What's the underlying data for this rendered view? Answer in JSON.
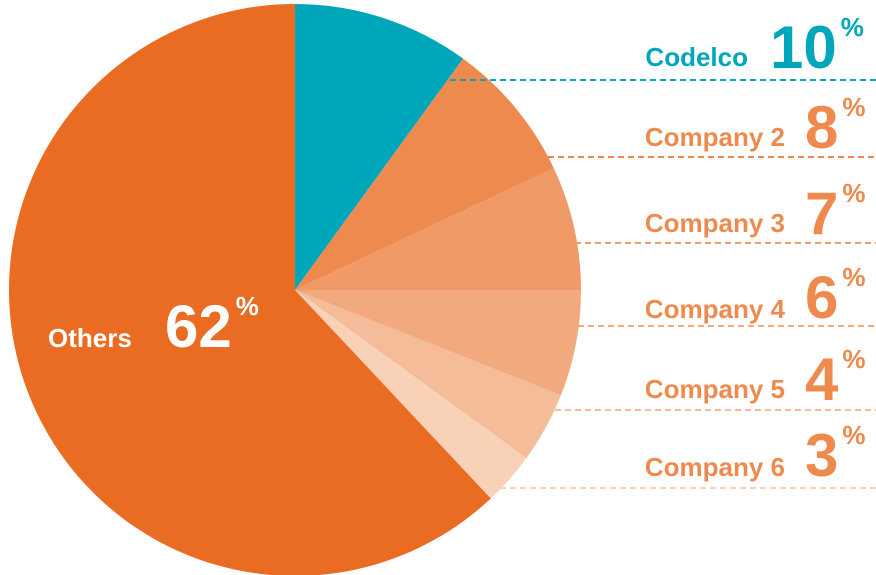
{
  "chart_data": {
    "type": "pie",
    "categories": [
      "Codelco",
      "Company 2",
      "Company 3",
      "Company 4",
      "Company 5",
      "Company 6",
      "Others"
    ],
    "values": [
      10,
      8,
      7,
      6,
      4,
      3,
      62
    ],
    "unit": "%",
    "colors": [
      "#00a6b9",
      "#ef8a4f",
      "#f09a68",
      "#f2a97e",
      "#f5bc99",
      "#f8d1b6",
      "#ea6b22"
    ]
  }
}
